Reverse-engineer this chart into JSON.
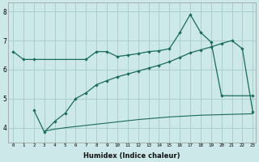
{
  "xlabel": "Humidex (Indice chaleur)",
  "bg_color": "#cce8e8",
  "line_color": "#1a6b5a",
  "grid_color": "#aacece",
  "xlim": [
    -0.5,
    23.3
  ],
  "ylim": [
    3.5,
    8.3
  ],
  "yticks": [
    4,
    5,
    6,
    7,
    8
  ],
  "xticks": [
    0,
    1,
    2,
    3,
    4,
    5,
    6,
    7,
    8,
    9,
    10,
    11,
    12,
    13,
    14,
    15,
    16,
    17,
    18,
    19,
    20,
    21,
    22,
    23
  ],
  "line1_x": [
    0,
    1,
    2,
    7,
    8,
    9,
    10,
    11,
    12,
    13,
    14,
    15,
    16,
    17,
    18,
    19,
    20,
    23
  ],
  "line1_y": [
    6.62,
    6.35,
    6.35,
    6.35,
    6.62,
    6.62,
    6.45,
    6.5,
    6.55,
    6.62,
    6.65,
    6.72,
    7.27,
    7.9,
    7.28,
    6.95,
    5.1,
    5.1
  ],
  "line2_x": [
    2,
    3,
    4,
    5,
    6,
    7,
    8,
    9,
    10,
    11,
    12,
    13,
    14,
    15,
    16,
    17,
    18,
    19,
    20,
    21,
    22,
    23
  ],
  "line2_y": [
    4.6,
    3.85,
    4.22,
    4.5,
    5.0,
    5.2,
    5.48,
    5.62,
    5.75,
    5.85,
    5.95,
    6.05,
    6.15,
    6.27,
    6.42,
    6.58,
    6.68,
    6.78,
    6.9,
    7.0,
    6.72,
    4.55
  ],
  "line3_x": [
    3,
    4,
    5,
    6,
    7,
    8,
    9,
    10,
    11,
    12,
    13,
    14,
    15,
    16,
    17,
    18,
    19,
    20,
    21,
    22,
    23
  ],
  "line3_y": [
    3.88,
    3.95,
    4.0,
    4.04,
    4.08,
    4.12,
    4.16,
    4.2,
    4.24,
    4.28,
    4.31,
    4.34,
    4.37,
    4.39,
    4.41,
    4.43,
    4.44,
    4.45,
    4.46,
    4.47,
    4.48
  ]
}
